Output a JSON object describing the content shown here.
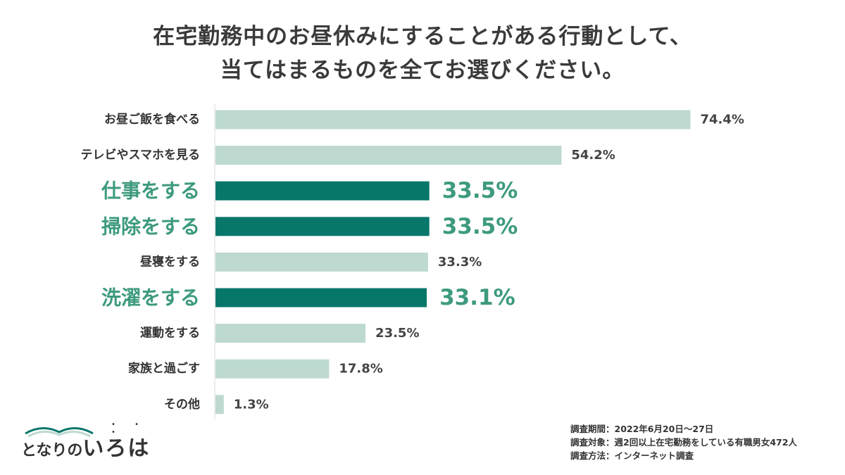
{
  "title_lines": [
    "在宅勤務中のお昼休みにすることがある行動として、",
    "当てはまるものを全てお選びください。"
  ],
  "colors": {
    "light_bar": "#bdd9d0",
    "highlight_bar": "#07776b",
    "highlight_text": "#3d9a7e",
    "normal_text": "#333333"
  },
  "chart_data": {
    "type": "bar",
    "orientation": "horizontal",
    "categories": [
      "お昼ご飯を食べる",
      "テレビやスマホを見る",
      "仕事をする",
      "掃除をする",
      "昼寝をする",
      "洗濯をする",
      "運動をする",
      "家族と過ごす",
      "その他"
    ],
    "values": [
      74.4,
      54.2,
      33.5,
      33.5,
      33.3,
      33.1,
      23.5,
      17.8,
      1.3
    ],
    "value_labels": [
      "74.4%",
      "54.2%",
      "33.5%",
      "33.5%",
      "33.3%",
      "33.1%",
      "23.5%",
      "17.8%",
      "1.3%"
    ],
    "highlighted": [
      false,
      false,
      true,
      true,
      false,
      true,
      false,
      false,
      false
    ],
    "xlim": [
      0,
      76
    ],
    "grid": false,
    "legend": "none"
  },
  "logo": {
    "prefix": "となりの",
    "main": "いろは",
    "dots": "• • •"
  },
  "notes": [
    "調査期間：2022年6月20日～27日",
    "調査対象：週2回以上在宅勤務をしている有職男女472人",
    "調査方法：インターネット調査"
  ]
}
